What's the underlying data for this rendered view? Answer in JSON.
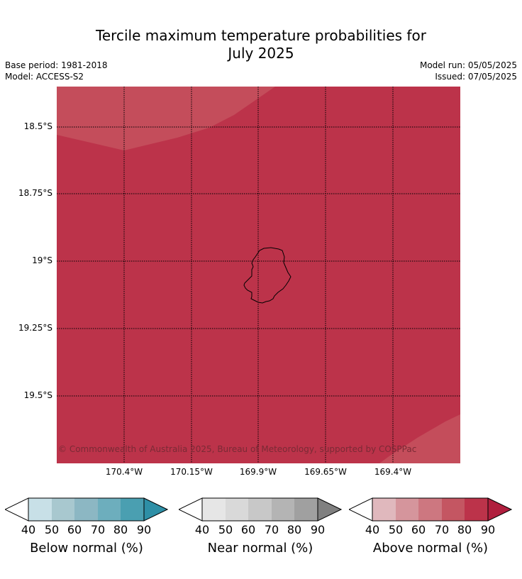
{
  "title_line1": "Tercile maximum temperature probabilities for",
  "title_line2": "July 2025",
  "base_period": "Base period: 1981-2018",
  "model": "Model: ACCESS-S2",
  "model_run": "Model run: 05/05/2025",
  "issued": "Issued: 07/05/2025",
  "copyright": "© Commonwealth of Australia 2025, Bureau of Meteorology, supported by COSPPac",
  "map": {
    "region": "Niue",
    "fill_main": "#bc334a",
    "fill_light": "#c44d5b",
    "lat_labels": [
      "18.5°S",
      "18.75°S",
      "19°S",
      "19.25°S",
      "19.5°S"
    ],
    "lon_labels": [
      "170.4°W",
      "170.15°W",
      "169.9°W",
      "169.65°W",
      "169.4°W"
    ]
  },
  "legends": [
    {
      "title": "Below normal (%)",
      "ticks": [
        "40",
        "50",
        "60",
        "70",
        "80",
        "90"
      ],
      "colors": [
        "#c8e0e7",
        "#a8c8cf",
        "#8cb7c3",
        "#6daebd",
        "#4a9fb1",
        "#2e8fa6"
      ]
    },
    {
      "title": "Near normal (%)",
      "ticks": [
        "40",
        "50",
        "60",
        "70",
        "80",
        "90"
      ],
      "colors": [
        "#e6e6e6",
        "#d9d9d9",
        "#c8c8c8",
        "#b4b4b4",
        "#a0a0a0",
        "#808080"
      ]
    },
    {
      "title": "Above normal (%)",
      "ticks": [
        "40",
        "50",
        "60",
        "70",
        "80",
        "90"
      ],
      "colors": [
        "#e0b8bd",
        "#d5959c",
        "#cd7780",
        "#c45662",
        "#bc334a",
        "#b01f3e"
      ]
    }
  ]
}
